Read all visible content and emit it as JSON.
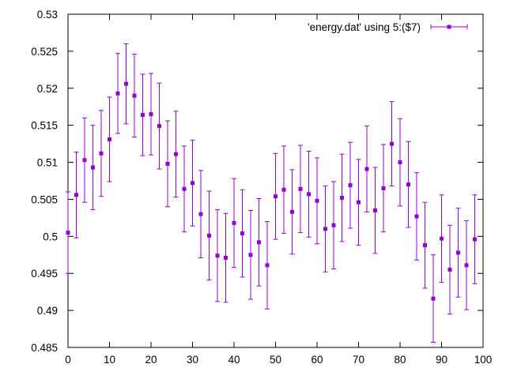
{
  "chart_data": {
    "type": "scatter",
    "title": "",
    "xlabel": "",
    "ylabel": "",
    "xlim": [
      0,
      100
    ],
    "ylim": [
      0.485,
      0.53
    ],
    "x_ticks": [
      "0",
      "10",
      "20",
      "30",
      "40",
      "50",
      "60",
      "70",
      "80",
      "90",
      "100"
    ],
    "y_ticks": [
      "0.485",
      "0.49",
      "0.495",
      "0.5",
      "0.505",
      "0.51",
      "0.515",
      "0.52",
      "0.525",
      "0.53"
    ],
    "grid": false,
    "legend_position": "top-right",
    "series": [
      {
        "name": "'energy.dat' using 5:($7)",
        "color": "#9400d3",
        "marker": "square",
        "error_bars": true,
        "x": [
          0,
          2,
          4,
          6,
          8,
          10,
          12,
          14,
          16,
          18,
          20,
          22,
          24,
          26,
          28,
          30,
          32,
          34,
          36,
          38,
          40,
          42,
          44,
          46,
          48,
          50,
          52,
          54,
          56,
          58,
          60,
          62,
          64,
          66,
          68,
          70,
          72,
          74,
          76,
          78,
          80,
          82,
          84,
          86,
          88,
          90,
          92,
          94,
          96,
          98
        ],
        "y": [
          0.5005,
          0.5056,
          0.5103,
          0.5093,
          0.5112,
          0.5131,
          0.5193,
          0.5206,
          0.519,
          0.5164,
          0.5165,
          0.5149,
          0.5098,
          0.5111,
          0.5064,
          0.5072,
          0.503,
          0.5001,
          0.4974,
          0.4971,
          0.5018,
          0.5004,
          0.4975,
          0.4992,
          0.4961,
          0.5054,
          0.5063,
          0.5033,
          0.5064,
          0.5057,
          0.5048,
          0.501,
          0.5015,
          0.5052,
          0.5069,
          0.5046,
          0.5091,
          0.5035,
          0.5065,
          0.5125,
          0.51,
          0.507,
          0.5027,
          0.4988,
          0.4916,
          0.4997,
          0.4955,
          0.4978,
          0.4961,
          0.4996
        ],
        "err": [
          0.0055,
          0.0058,
          0.0057,
          0.0057,
          0.0058,
          0.0057,
          0.0054,
          0.0054,
          0.0056,
          0.0055,
          0.0055,
          0.0058,
          0.0058,
          0.0058,
          0.0058,
          0.0058,
          0.0059,
          0.006,
          0.0062,
          0.006,
          0.006,
          0.0059,
          0.006,
          0.0059,
          0.0059,
          0.0058,
          0.0059,
          0.0057,
          0.0059,
          0.0058,
          0.0058,
          0.0058,
          0.0059,
          0.0059,
          0.0058,
          0.0058,
          0.0058,
          0.0058,
          0.0059,
          0.0057,
          0.0059,
          0.0058,
          0.0059,
          0.0058,
          0.0059,
          0.0059,
          0.006,
          0.006,
          0.006,
          0.006
        ]
      }
    ]
  }
}
